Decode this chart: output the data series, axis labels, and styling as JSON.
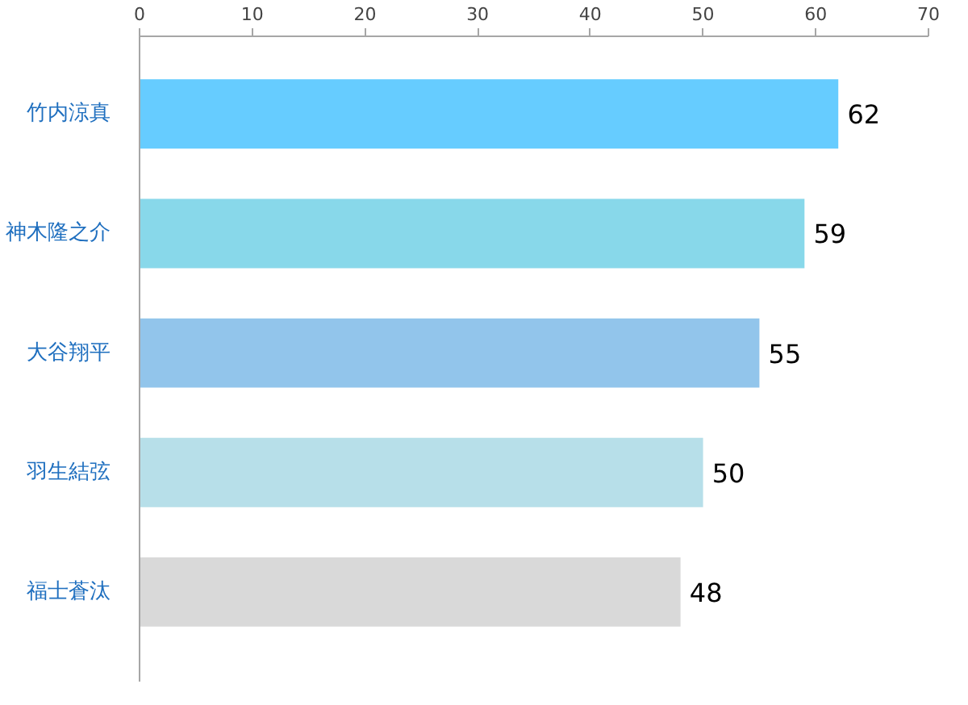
{
  "chart_data": {
    "type": "bar",
    "orientation": "horizontal",
    "categories": [
      "竹内涼真",
      "神木隆之介",
      "大谷翔平",
      "羽生結弦",
      "福士蒼汰"
    ],
    "values": [
      62,
      59,
      55,
      50,
      48
    ],
    "colors": [
      "#66ccff",
      "#88d8ea",
      "#92c5eb",
      "#b7dfe9",
      "#d9d9d9"
    ],
    "xlim": [
      0,
      70
    ],
    "xticks": [
      0,
      10,
      20,
      30,
      40,
      50,
      60,
      70
    ],
    "data_labels": true
  }
}
